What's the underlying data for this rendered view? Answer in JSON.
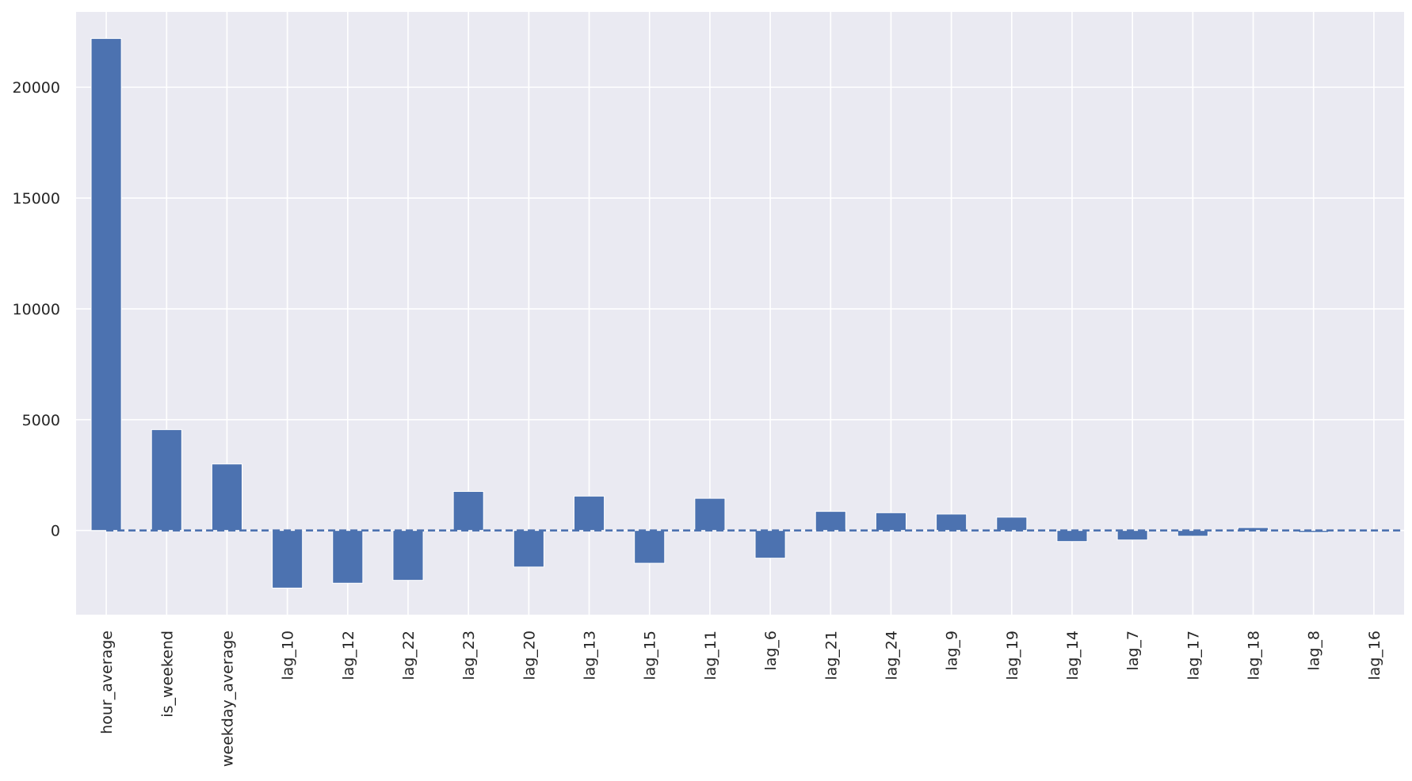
{
  "chart_data": {
    "type": "bar",
    "title": "",
    "xlabel": "",
    "ylabel": "",
    "categories": [
      "hour_average",
      "is_weekend",
      "weekday_average",
      "lag_10",
      "lag_12",
      "lag_22",
      "lag_23",
      "lag_20",
      "lag_13",
      "lag_15",
      "lag_11",
      "lag_6",
      "lag_21",
      "lag_24",
      "lag_9",
      "lag_19",
      "lag_14",
      "lag_7",
      "lag_17",
      "lag_18",
      "lag_8",
      "lag_16"
    ],
    "values": [
      22200,
      4550,
      3000,
      -2600,
      -2380,
      -2250,
      1760,
      -1650,
      1550,
      -1480,
      1450,
      -1250,
      860,
      800,
      740,
      600,
      -500,
      -430,
      -260,
      130,
      -90,
      20
    ],
    "ylim": [
      -3800,
      23400
    ],
    "yticks": [
      0,
      5000,
      10000,
      15000,
      20000
    ],
    "ytick_labels": [
      "0",
      "5000",
      "10000",
      "15000",
      "20000"
    ],
    "reference_line": {
      "y": 0,
      "style": "dashed"
    },
    "grid": true,
    "legend": "none",
    "colors": {
      "background": "#eaeaf2",
      "grid": "#ffffff",
      "bar": "#4c72b0",
      "reference_line": "#4c72b0",
      "tick_text": "#262626"
    }
  }
}
